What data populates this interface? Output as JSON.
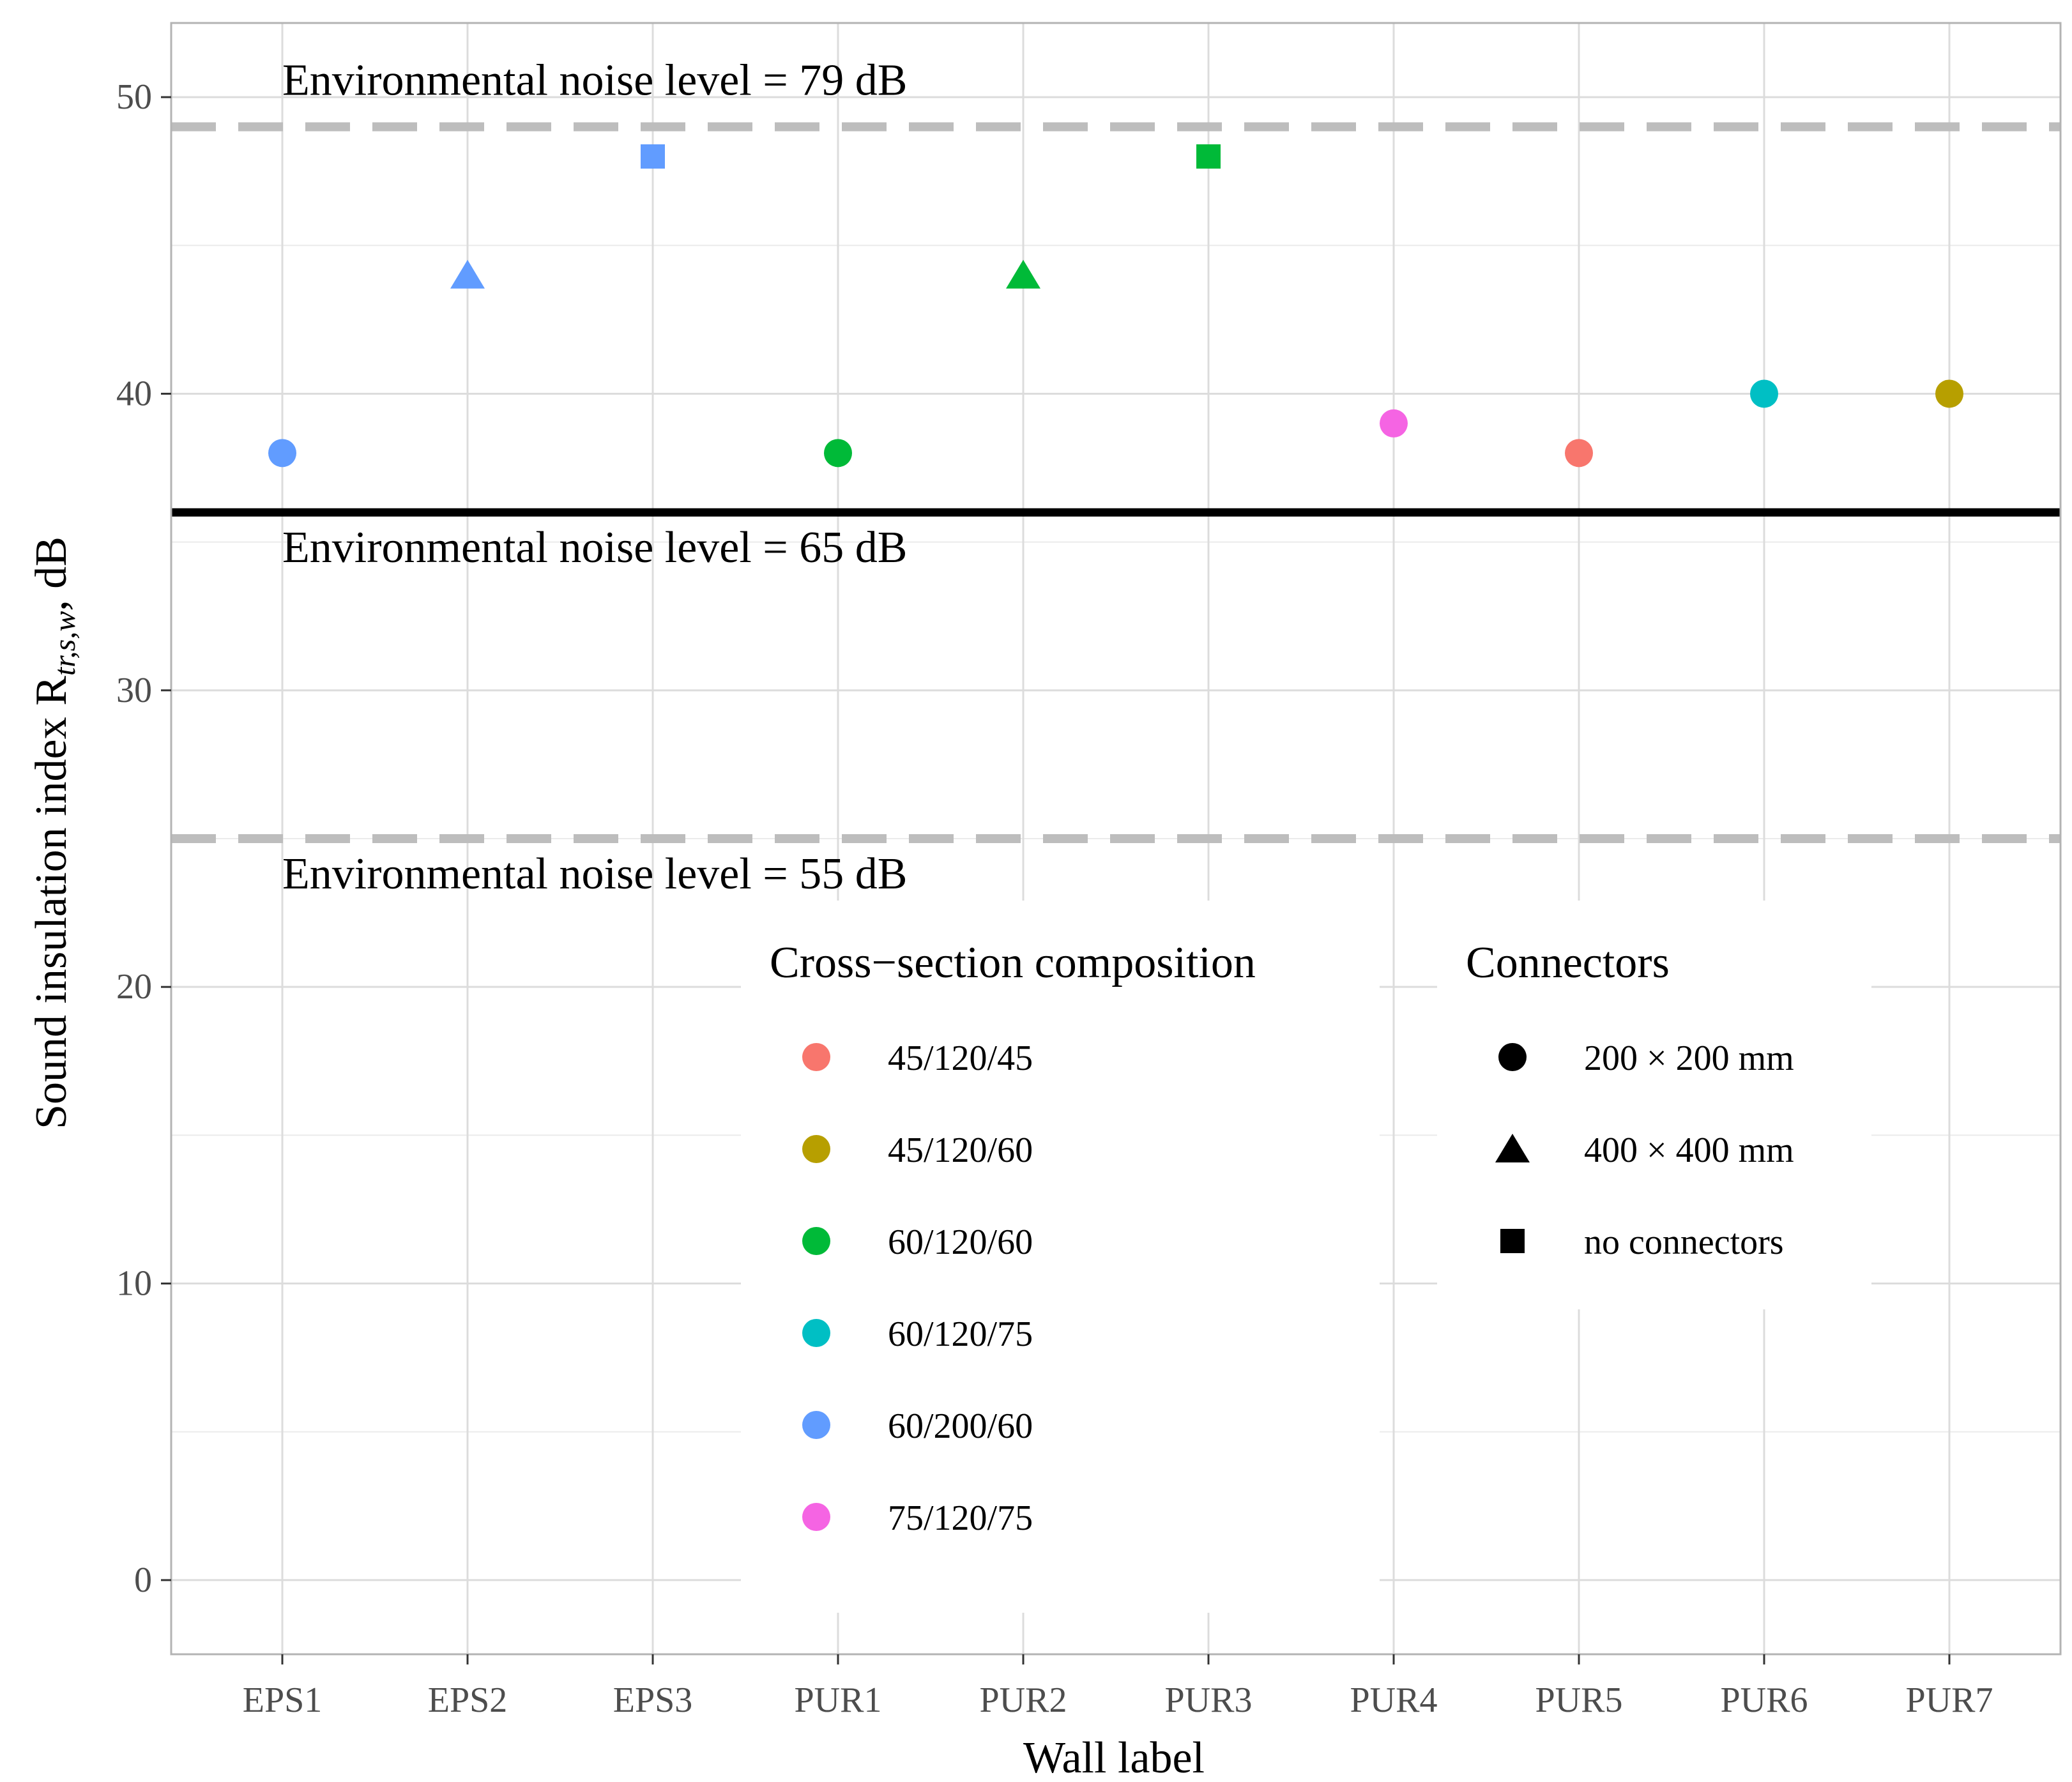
{
  "chart_data": {
    "type": "scatter",
    "xlabel": "Wall label",
    "ylabel": "Sound insulation index R",
    "ylabel_sub": "tr,s,w",
    "ylabel_unit": ", dB",
    "categories": [
      "EPS1",
      "EPS2",
      "EPS3",
      "PUR1",
      "PUR2",
      "PUR3",
      "PUR4",
      "PUR5",
      "PUR6",
      "PUR7"
    ],
    "ylim": [
      -2.5,
      52.5
    ],
    "yticks": [
      0,
      10,
      20,
      30,
      40,
      50
    ],
    "grid": true,
    "points": [
      {
        "x": "EPS1",
        "y": 38,
        "composition": "60/200/60",
        "connectors": "200 × 200 mm"
      },
      {
        "x": "EPS2",
        "y": 44,
        "composition": "60/200/60",
        "connectors": "400 × 400 mm"
      },
      {
        "x": "EPS3",
        "y": 48,
        "composition": "60/200/60",
        "connectors": "no connectors"
      },
      {
        "x": "PUR1",
        "y": 38,
        "composition": "60/120/60",
        "connectors": "200 × 200 mm"
      },
      {
        "x": "PUR2",
        "y": 44,
        "composition": "60/120/60",
        "connectors": "400 × 400 mm"
      },
      {
        "x": "PUR3",
        "y": 48,
        "composition": "60/120/60",
        "connectors": "no connectors"
      },
      {
        "x": "PUR4",
        "y": 39,
        "composition": "75/120/75",
        "connectors": "200 × 200 mm"
      },
      {
        "x": "PUR5",
        "y": 38,
        "composition": "45/120/45",
        "connectors": "200 × 200 mm"
      },
      {
        "x": "PUR6",
        "y": 40,
        "composition": "60/120/75",
        "connectors": "200 × 200 mm"
      },
      {
        "x": "PUR7",
        "y": 40,
        "composition": "45/120/60",
        "connectors": "200 × 200 mm"
      }
    ],
    "reference_lines": [
      {
        "y": 49,
        "style": "dashed",
        "color": "#bdbdbd",
        "label": "Environmental noise level = 79 dB",
        "label_position": "above"
      },
      {
        "y": 36,
        "style": "solid",
        "color": "#000000",
        "label": "Environmental noise level = 65 dB",
        "label_position": "below"
      },
      {
        "y": 25,
        "style": "dashed",
        "color": "#bdbdbd",
        "label": "Environmental noise level = 55 dB",
        "label_position": "below"
      }
    ],
    "legend_color": {
      "title": "Cross−section composition",
      "entries": [
        {
          "label": "45/120/45",
          "color": "#F8766D"
        },
        {
          "label": "45/120/60",
          "color": "#B79F00"
        },
        {
          "label": "60/120/60",
          "color": "#00BA38"
        },
        {
          "label": "60/120/75",
          "color": "#00BFC4"
        },
        {
          "label": "60/200/60",
          "color": "#619CFF"
        },
        {
          "label": "75/120/75",
          "color": "#F564E3"
        }
      ]
    },
    "legend_shape": {
      "title": "Connectors",
      "entries": [
        {
          "label": "200 × 200 mm",
          "shape": "circle"
        },
        {
          "label": "400 × 400 mm",
          "shape": "triangle"
        },
        {
          "label": "no connectors",
          "shape": "square"
        }
      ]
    },
    "legend_position": "inside-bottom-center"
  }
}
